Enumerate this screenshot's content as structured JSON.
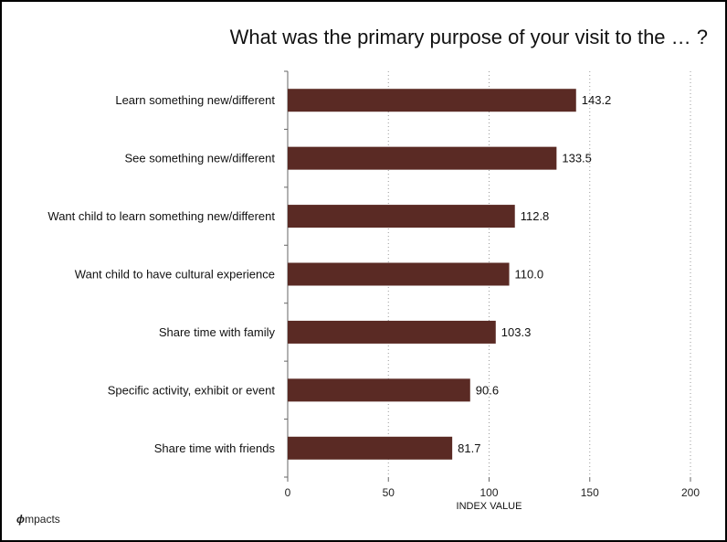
{
  "chart_data": {
    "type": "bar",
    "orientation": "horizontal",
    "title": "What was the primary purpose of your visit to the … ?",
    "categories": [
      "Learn something new/different",
      "See something new/different",
      "Want child to learn something new/different",
      "Want child to have cultural experience",
      "Share time with family",
      "Specific activity, exhibit or event",
      "Share time with friends"
    ],
    "values": [
      143.2,
      133.5,
      112.8,
      110.0,
      103.3,
      90.6,
      81.7
    ],
    "value_labels": [
      "143.2",
      "133.5",
      "112.8",
      "110.0",
      "103.3",
      "90.6",
      "81.7"
    ],
    "xlabel": "INDEX VALUE",
    "ylabel": "",
    "xlim": [
      0,
      200
    ],
    "xticks": [
      0,
      50,
      100,
      150,
      200
    ],
    "grid": "vertical dotted",
    "bar_color": "#5a2a24"
  },
  "logo_text": "mpacts"
}
